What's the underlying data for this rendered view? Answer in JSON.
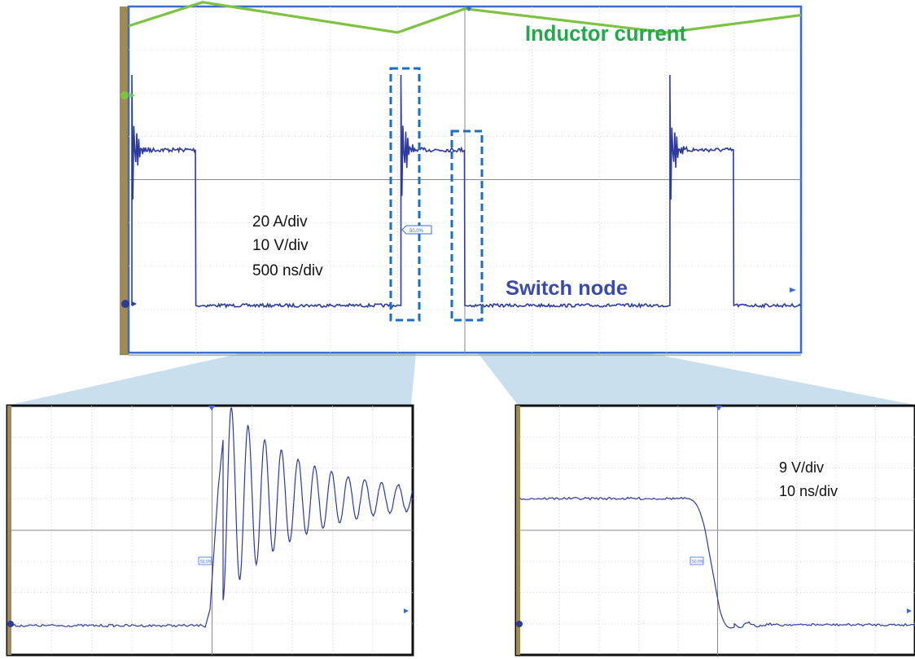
{
  "main_scope": {
    "labels": {
      "inductor": "Inductor current",
      "switch_node": "Switch node",
      "scale_current": "20 A/div",
      "scale_voltage": "10 V/div",
      "scale_time": "500 ns/div",
      "marker": "50.0%"
    },
    "colors": {
      "inductor_trace": "#7dc242",
      "switch_trace": "#2e3a9c",
      "inductor_label": "#22a94b",
      "switch_label": "#3a4aa8",
      "highlight_box": "#1a6fc2",
      "scope_border": "#3a6bd1",
      "bezel": "#a08a55"
    }
  },
  "zoom_rising": {
    "marker": "50.0%"
  },
  "zoom_falling": {
    "scale_voltage": "9 V/div",
    "scale_time": "10 ns/div",
    "marker": "50.0%"
  },
  "chart_data": [
    {
      "type": "line",
      "grid": true,
      "series": [
        {
          "name": "Inductor current",
          "color": "#7dc242",
          "x_div": [
            0,
            1.1,
            4.0,
            5.0,
            8.0,
            10.0
          ],
          "y_div": [
            3.55,
            4.1,
            3.4,
            3.95,
            3.4,
            3.8
          ]
        },
        {
          "name": "Switch node",
          "color": "#2e3a9c",
          "x_div": [
            0,
            1.0,
            1.05,
            4.0,
            4.05,
            5.0,
            5.05,
            8.0,
            8.05,
            9.0,
            9.05,
            10.0
          ],
          "y_div": [
            0,
            2.4,
            0,
            0,
            2.4,
            2.4,
            0,
            0,
            2.4,
            2.4,
            0,
            0
          ]
        }
      ]
    },
    {
      "type": "line",
      "grid": true,
      "series": [
        {
          "color": "#2e3a9c",
          "x_div": [
            0,
            5.0,
            5.2,
            5.5,
            6.0,
            7.0,
            8.0,
            10.0
          ],
          "y_div": [
            -3.25,
            -3.3,
            -2.4,
            2.7,
            1.0,
            1.8,
            1.4,
            1.6
          ]
        }
      ]
    },
    {
      "type": "line",
      "grid": true,
      "series": [
        {
          "color": "#2e3a9c",
          "x_div": [
            0,
            4.2,
            4.4,
            5.3,
            5.6,
            6.0,
            10.0
          ],
          "y_div": [
            1.6,
            1.6,
            1.3,
            -3.0,
            -3.5,
            -3.4,
            -3.35
          ]
        }
      ]
    }
  ]
}
